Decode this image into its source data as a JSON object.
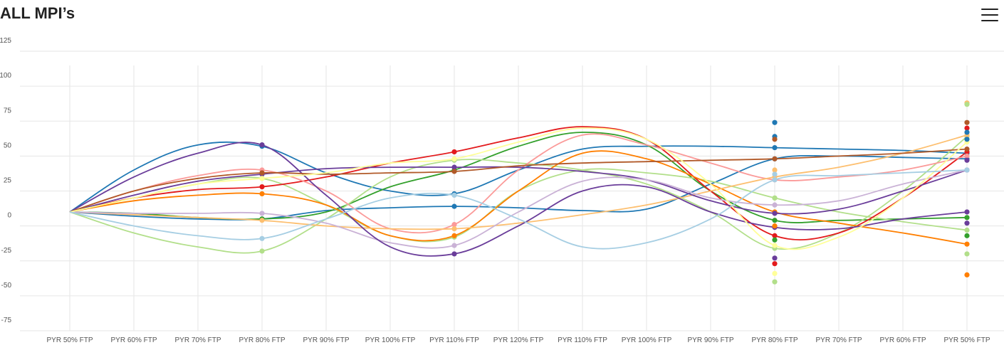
{
  "header": {
    "title": "ALL MPI’s",
    "menu_icon": "hamburger-menu-icon"
  },
  "chart_data": {
    "type": "line",
    "title": "",
    "xlabel": "",
    "ylabel": "",
    "ylim": [
      -75,
      125
    ],
    "yticks": [
      -75,
      -50,
      -25,
      0,
      25,
      50,
      75,
      100,
      125
    ],
    "grid": true,
    "legend": "none",
    "curve": "smooth",
    "categories": [
      "PYR 50% FTP",
      "PYR 60% FTP",
      "PYR 70% FTP",
      "PYR 80% FTP",
      "PYR 90% FTP",
      "PYR 100% FTP",
      "PYR 110% FTP",
      "PYR 120% FTP",
      "PYR 110% FTP",
      "PYR 100% FTP",
      "PYR 90% FTP",
      "PYR 80% FTP",
      "PYR 70% FTP",
      "PYR 60% FTP",
      "PYR 50% FTP"
    ],
    "marker_indices": [
      3,
      6,
      11,
      14
    ],
    "series": [
      {
        "color": "#1f78b4",
        "values": [
          10,
          40,
          58,
          57,
          38,
          25,
          23,
          40,
          55,
          57,
          57,
          56,
          55,
          54,
          52
        ]
      },
      {
        "color": "#1f78b4",
        "values": [
          10,
          7,
          5,
          5,
          11,
          13,
          14,
          13,
          11,
          12,
          30,
          48,
          50,
          49,
          48
        ]
      },
      {
        "color": "#33a02c",
        "values": [
          10,
          9,
          6,
          5,
          10,
          28,
          40,
          57,
          67,
          58,
          25,
          4,
          4,
          5,
          6
        ]
      },
      {
        "color": "#b2df8a",
        "values": [
          10,
          -5,
          -15,
          -18,
          5,
          35,
          47,
          45,
          40,
          30,
          10,
          -16,
          -5,
          25,
          64
        ]
      },
      {
        "color": "#b2df8a",
        "values": [
          10,
          20,
          30,
          34,
          15,
          -7,
          -8,
          25,
          40,
          38,
          32,
          20,
          10,
          3,
          -3
        ]
      },
      {
        "color": "#e31a1c",
        "values": [
          10,
          20,
          26,
          28,
          35,
          45,
          53,
          63,
          71,
          62,
          25,
          -7,
          -5,
          20,
          53
        ]
      },
      {
        "color": "#fb9a99",
        "values": [
          10,
          25,
          36,
          40,
          25,
          -2,
          1,
          40,
          65,
          58,
          45,
          33,
          35,
          40,
          50
        ]
      },
      {
        "color": "#ff7f00",
        "values": [
          10,
          18,
          22,
          23,
          15,
          -7,
          -7,
          25,
          52,
          48,
          30,
          10,
          2,
          -5,
          -13
        ]
      },
      {
        "color": "#fdbf6f",
        "values": [
          10,
          8,
          6,
          4,
          0,
          -2,
          -2,
          2,
          8,
          15,
          25,
          35,
          42,
          52,
          65
        ]
      },
      {
        "color": "#6a3d9a",
        "values": [
          10,
          22,
          32,
          37,
          41,
          42,
          42,
          42,
          39,
          33,
          18,
          9,
          12,
          25,
          40
        ]
      },
      {
        "color": "#cab2d6",
        "values": [
          10,
          9,
          9,
          9,
          2,
          -12,
          -14,
          10,
          32,
          33,
          20,
          15,
          18,
          30,
          40
        ]
      },
      {
        "color": "#6a3d9a",
        "values": [
          10,
          35,
          52,
          58,
          22,
          -15,
          -20,
          0,
          25,
          28,
          10,
          -1,
          -2,
          5,
          10
        ]
      },
      {
        "color": "#b15928",
        "values": [
          10,
          25,
          34,
          38,
          37,
          38,
          39,
          43,
          45,
          46,
          47,
          48,
          50,
          52,
          55
        ]
      },
      {
        "color": "#ffff99",
        "values": [
          10,
          20,
          30,
          34,
          38,
          45,
          48,
          60,
          70,
          62,
          30,
          -14,
          -8,
          20,
          60
        ]
      },
      {
        "color": "#a6cee3",
        "values": [
          10,
          0,
          -7,
          -9,
          5,
          20,
          22,
          5,
          -15,
          -12,
          5,
          33,
          36,
          38,
          40
        ]
      }
    ],
    "extra_points": [
      {
        "index": 11,
        "color": "#1f78b4",
        "value": 74
      },
      {
        "index": 11,
        "color": "#1f78b4",
        "value": 64
      },
      {
        "index": 11,
        "color": "#b15928",
        "value": 62
      },
      {
        "index": 11,
        "color": "#fdbf6f",
        "value": 40
      },
      {
        "index": 11,
        "color": "#a6cee3",
        "value": 37
      },
      {
        "index": 11,
        "color": "#b2df8a",
        "value": 20
      },
      {
        "index": 11,
        "color": "#ff7f00",
        "value": 0
      },
      {
        "index": 11,
        "color": "#33a02c",
        "value": -10
      },
      {
        "index": 11,
        "color": "#6a3d9a",
        "value": -23
      },
      {
        "index": 11,
        "color": "#e31a1c",
        "value": -27
      },
      {
        "index": 11,
        "color": "#ffff99",
        "value": -34
      },
      {
        "index": 11,
        "color": "#b2df8a",
        "value": -40
      },
      {
        "index": 14,
        "color": "#fdbf6f",
        "value": 88
      },
      {
        "index": 14,
        "color": "#b2df8a",
        "value": 87
      },
      {
        "index": 14,
        "color": "#b15928",
        "value": 74
      },
      {
        "index": 14,
        "color": "#e31a1c",
        "value": 70
      },
      {
        "index": 14,
        "color": "#1f78b4",
        "value": 67
      },
      {
        "index": 14,
        "color": "#1f78b4",
        "value": 62
      },
      {
        "index": 14,
        "color": "#6a3d9a",
        "value": 47
      },
      {
        "index": 14,
        "color": "#6a3d9a",
        "value": 2
      },
      {
        "index": 14,
        "color": "#33a02c",
        "value": -7
      },
      {
        "index": 14,
        "color": "#b2df8a",
        "value": -20
      },
      {
        "index": 14,
        "color": "#ff7f00",
        "value": -35
      }
    ]
  }
}
